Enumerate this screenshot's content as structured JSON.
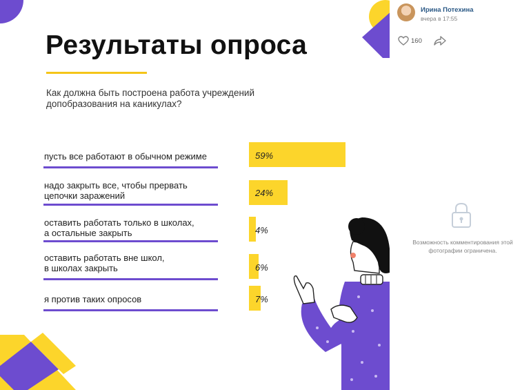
{
  "post": {
    "author_name": "Ирина Потехина",
    "time": "вчера в 17:55",
    "likes_count": "160",
    "comments_notice": "Возможность комментирования этой фотографии ограничена."
  },
  "survey": {
    "title": "Результаты опроса",
    "question": "Как должна быть построена работа учреждений\nдопобразования на каникулах?",
    "options": [
      {
        "label": "пусть все работают в обычном режиме",
        "percent_label": "59%",
        "value": 59
      },
      {
        "label": "надо закрыть все, чтобы прервать\nцепочки заражений",
        "percent_label": "24%",
        "value": 24
      },
      {
        "label": "оставить работать только в школах,\nа остальные закрыть",
        "percent_label": "4%",
        "value": 4
      },
      {
        "label": "оставить работать вне школ,\nв школах закрыть",
        "percent_label": "6%",
        "value": 6
      },
      {
        "label": "я против таких опросов",
        "percent_label": "7%",
        "value": 7
      }
    ]
  },
  "colors": {
    "accent_yellow": "#fcd52b",
    "accent_purple": "#6d4ccf",
    "link_blue": "#2a5885"
  },
  "icons": [
    "heart-icon",
    "share-icon",
    "lock-icon"
  ]
}
